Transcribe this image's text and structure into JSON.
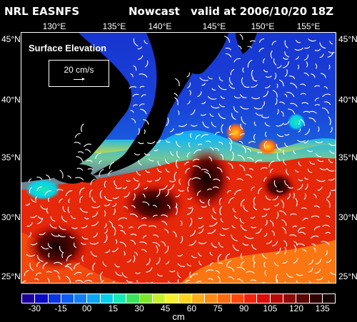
{
  "header": {
    "source": "NRL EASNFS",
    "product": "Nowcast",
    "valid": "valid at 2006/10/20 18Z"
  },
  "axes": {
    "longitude_labels": [
      "130°E",
      "135°E",
      "140°E",
      "145°E",
      "150°E",
      "155°E"
    ],
    "latitude_labels": [
      "45°N",
      "40°N",
      "35°N",
      "30°N",
      "25°N"
    ]
  },
  "legend": {
    "title": "Surface Elevation",
    "vector_scale": "20 cm/s"
  },
  "colorbar": {
    "tick_labels": [
      "-30",
      "-15",
      "00",
      "15",
      "30",
      "45",
      "60",
      "75",
      "90",
      "105",
      "120",
      "135"
    ],
    "unit": "cm",
    "colors": [
      "#1b009c",
      "#0b0bc6",
      "#0a35e0",
      "#0d5ef2",
      "#127ff8",
      "#0ba6f6",
      "#07cfe8",
      "#19e8b4",
      "#39e35c",
      "#7fe62c",
      "#c8f02a",
      "#f8f22c",
      "#ffd21f",
      "#ffac18",
      "#ff8a12",
      "#ff6a10",
      "#ff470d",
      "#f5230b",
      "#de0c0a",
      "#b90a08",
      "#8d0a07",
      "#5a0705",
      "#2c0302",
      "#120100"
    ]
  },
  "map": {
    "colors": {
      "ocean_north": "#1a3bd6",
      "ocean_mid": "#18b6f0",
      "ocean_south": "#f0420c",
      "ocean_south_far": "#ff7f16",
      "eddy_core": "#1a0200",
      "land": "#000000",
      "vectors": "#ffffff"
    }
  }
}
